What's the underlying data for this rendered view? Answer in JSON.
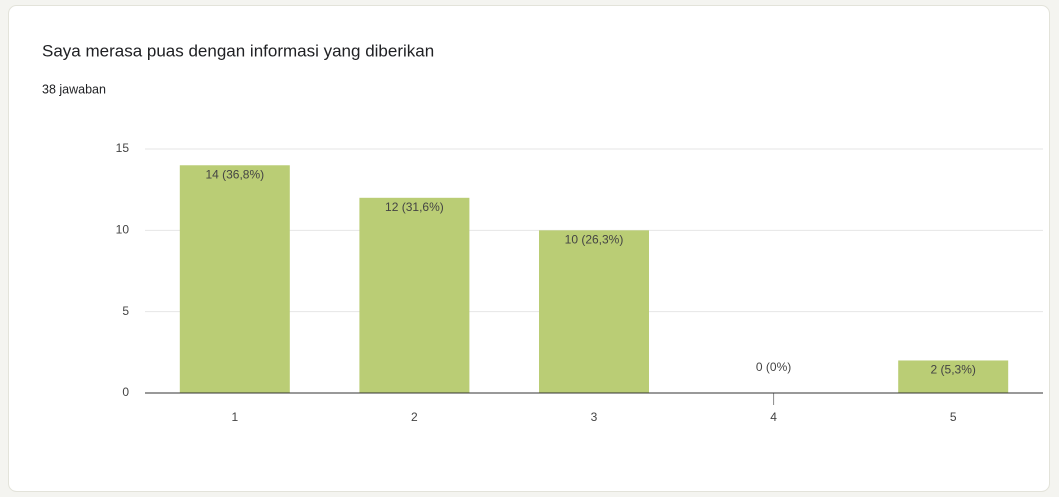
{
  "chart_data": {
    "type": "bar",
    "title": "Saya merasa puas dengan informasi yang diberikan",
    "subtitle": "38 jawaban",
    "categories": [
      "1",
      "2",
      "3",
      "4",
      "5"
    ],
    "values": [
      14,
      12,
      10,
      0,
      2
    ],
    "value_labels": [
      "14 (36,8%)",
      "12 (31,6%)",
      "10 (26,3%)",
      "0 (0%)",
      "2 (5,3%)"
    ],
    "color": "#bacd75",
    "ylim": [
      0,
      15
    ],
    "yticks": [
      0,
      5,
      10,
      15
    ],
    "grid": true
  }
}
